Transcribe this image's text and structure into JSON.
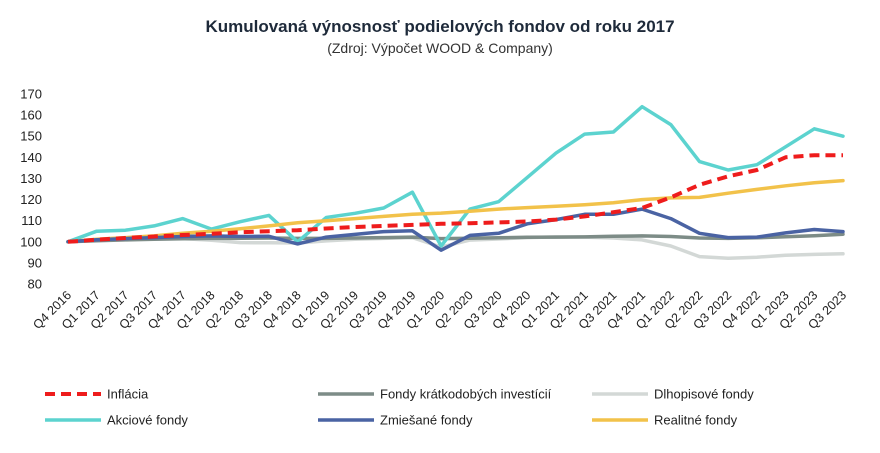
{
  "chart_data": {
    "type": "line",
    "title": "Kumulovaná výnosnosť podielových fondov od roku 2017",
    "subtitle": "(Zdroj: Výpočet WOOD & Company)",
    "xlabel": "",
    "ylabel": "",
    "ylim": [
      80,
      170
    ],
    "yticks": [
      80,
      90,
      100,
      110,
      120,
      130,
      140,
      150,
      160,
      170
    ],
    "grid": false,
    "legend_position": "bottom",
    "categories": [
      "Q4 2016",
      "Q1 2017",
      "Q2 2017",
      "Q3 2017",
      "Q4 2017",
      "Q1 2018",
      "Q2 2018",
      "Q3 2018",
      "Q4 2018",
      "Q1 2019",
      "Q2 2019",
      "Q3 2019",
      "Q4 2019",
      "Q1 2020",
      "Q2 2020",
      "Q3 2020",
      "Q4 2020",
      "Q1 2021",
      "Q2 2021",
      "Q3 2021",
      "Q4 2021",
      "Q1 2022",
      "Q2 2022",
      "Q3 2022",
      "Q4 2022",
      "Q1 2023",
      "Q2 2023",
      "Q3 2023"
    ],
    "series": [
      {
        "name": "Inflácia",
        "color": "#ee1c1c",
        "dashed": true,
        "values": [
          100,
          101,
          101.8,
          102.5,
          103.2,
          103.8,
          104.5,
          105,
          105.5,
          106.3,
          107,
          107.5,
          108,
          108.5,
          108.8,
          109.2,
          109.6,
          110.5,
          112,
          114,
          116,
          121,
          127,
          131,
          134,
          140,
          141,
          141
        ]
      },
      {
        "name": "Fondy krátkodobých investícií",
        "color": "#7d8c87",
        "dashed": false,
        "values": [
          100,
          100.5,
          100.9,
          101.2,
          101.4,
          101.6,
          101.7,
          101.8,
          101.6,
          101.6,
          101.8,
          102,
          102.2,
          101.5,
          101.7,
          101.9,
          102.1,
          102.2,
          102.3,
          102.6,
          102.8,
          102.5,
          101.8,
          101.6,
          101.9,
          102.4,
          102.9,
          103.6
        ]
      },
      {
        "name": "Dlhopisové fondy",
        "color": "#d3d8d6",
        "dashed": false,
        "values": [
          100,
          100.8,
          101.2,
          101.5,
          101.5,
          100.7,
          99.6,
          99.5,
          99.4,
          100.4,
          101.2,
          101.6,
          102,
          97.5,
          100.8,
          101.3,
          102,
          102.3,
          102.2,
          101.8,
          100.9,
          98,
          93,
          92.2,
          92.7,
          93.6,
          94,
          94.3
        ]
      },
      {
        "name": "Akciové fondy",
        "color": "#5cd3cf",
        "dashed": false,
        "values": [
          100,
          105,
          105.5,
          107.5,
          111,
          106,
          109.5,
          112.5,
          100,
          111.5,
          113.5,
          116,
          123.5,
          98,
          115.5,
          119,
          130.5,
          142,
          151,
          152,
          164,
          155.5,
          138,
          134,
          136.5,
          145,
          153.5,
          150
        ]
      },
      {
        "name": "Zmiešané fondy",
        "color": "#4a63a3",
        "dashed": false,
        "values": [
          100,
          101,
          101.5,
          102,
          102.5,
          102.8,
          102.5,
          102.6,
          99,
          102.2,
          103.5,
          104.8,
          105.2,
          96,
          103,
          104,
          108.5,
          110.5,
          113,
          113,
          115.5,
          111,
          104,
          102,
          102.2,
          104.2,
          105.8,
          104.8
        ]
      },
      {
        "name": "Realitné fondy",
        "color": "#f2c24a",
        "dashed": false,
        "values": [
          100,
          101.2,
          102,
          102.8,
          104,
          105,
          106.2,
          107.5,
          109,
          110,
          111,
          112,
          113,
          113.6,
          114.5,
          115.5,
          116.2,
          116.8,
          117.5,
          118.5,
          120,
          120.8,
          121,
          123,
          124.8,
          126.5,
          128,
          129
        ]
      }
    ]
  }
}
